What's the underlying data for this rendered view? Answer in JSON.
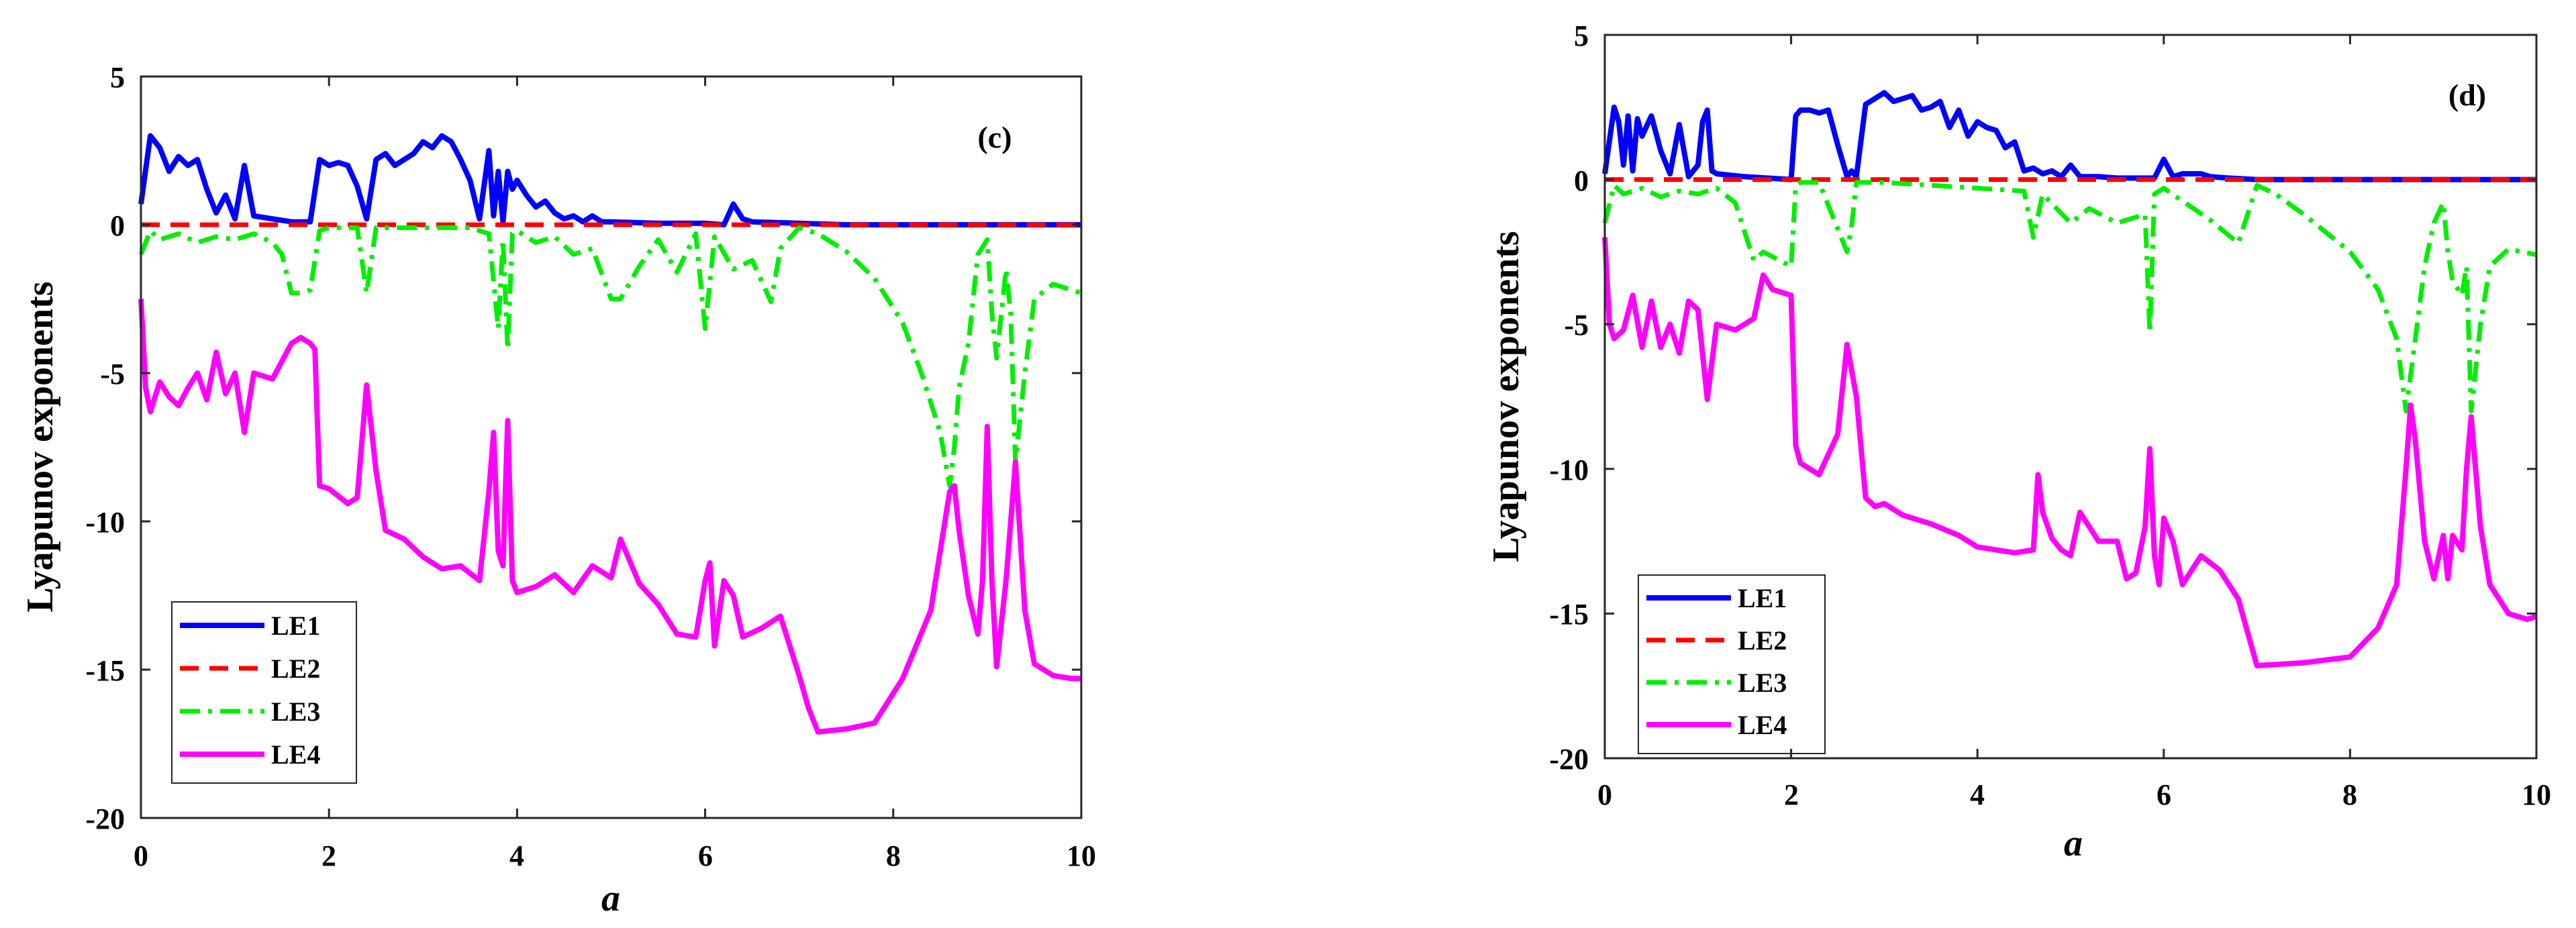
{
  "chart_data": [
    {
      "type": "line",
      "title": "(c)",
      "xlabel": "a",
      "ylabel": "Lyapunov exponents",
      "xlim": [
        0,
        10
      ],
      "ylim": [
        -20,
        5
      ],
      "xticks": [
        "0",
        "2",
        "4",
        "6",
        "8",
        "10"
      ],
      "yticks": [
        "5",
        "0",
        "-5",
        "-10",
        "-15",
        "-20"
      ],
      "legend_position": "bottom-left",
      "series": [
        {
          "name": "LE1",
          "color": "#0000ff",
          "dash": "solid",
          "x": [
            0,
            0.1,
            0.2,
            0.3,
            0.4,
            0.5,
            0.6,
            0.7,
            0.8,
            0.9,
            1.0,
            1.1,
            1.2,
            1.4,
            1.6,
            1.7,
            1.8,
            1.9,
            2.0,
            2.1,
            2.2,
            2.3,
            2.4,
            2.5,
            2.6,
            2.7,
            2.8,
            2.9,
            3.0,
            3.1,
            3.2,
            3.3,
            3.4,
            3.5,
            3.6,
            3.7,
            3.75,
            3.8,
            3.85,
            3.9,
            3.95,
            4.0,
            4.1,
            4.2,
            4.3,
            4.4,
            4.5,
            4.6,
            4.7,
            4.8,
            4.9,
            5.0,
            5.5,
            6.0,
            6.2,
            6.3,
            6.4,
            6.5,
            7.0,
            7.5,
            8.0,
            9.0,
            10.0
          ],
          "y": [
            0.7,
            3.0,
            2.6,
            1.8,
            2.3,
            2.0,
            2.2,
            1.2,
            0.4,
            1.0,
            0.2,
            2.0,
            0.3,
            0.2,
            0.1,
            0.1,
            0.1,
            2.2,
            2.0,
            2.1,
            2.0,
            1.3,
            0.2,
            2.2,
            2.4,
            2.0,
            2.2,
            2.4,
            2.8,
            2.6,
            3.0,
            2.8,
            2.2,
            1.5,
            0.2,
            2.5,
            0.3,
            1.8,
            0.1,
            1.8,
            1.2,
            1.5,
            1.0,
            0.6,
            0.8,
            0.4,
            0.2,
            0.3,
            0.1,
            0.3,
            0.1,
            0.1,
            0.05,
            0.05,
            0.0,
            0.7,
            0.2,
            0.1,
            0.05,
            0.0,
            0.0,
            0.0,
            0.0
          ]
        },
        {
          "name": "LE2",
          "color": "#ff0000",
          "dash": "dashed",
          "x": [
            0,
            10
          ],
          "y": [
            0,
            0
          ]
        },
        {
          "name": "LE3",
          "color": "#00ee00",
          "dash": "dashdot",
          "x": [
            0,
            0.1,
            0.2,
            0.4,
            0.6,
            0.8,
            1.0,
            1.2,
            1.4,
            1.5,
            1.6,
            1.7,
            1.8,
            1.9,
            2.0,
            2.3,
            2.4,
            2.5,
            3.0,
            3.5,
            3.7,
            3.8,
            3.85,
            3.9,
            3.95,
            4.0,
            4.2,
            4.4,
            4.6,
            4.8,
            5.0,
            5.1,
            5.3,
            5.5,
            5.7,
            5.9,
            6.0,
            6.1,
            6.3,
            6.5,
            6.7,
            6.8,
            7.0,
            7.2,
            7.5,
            7.8,
            8.1,
            8.3,
            8.5,
            8.6,
            8.65,
            8.7,
            8.8,
            8.9,
            9.0,
            9.05,
            9.1,
            9.2,
            9.25,
            9.3,
            9.4,
            9.5,
            9.7,
            10.0
          ],
          "y": [
            -1.0,
            -0.2,
            -0.5,
            -0.3,
            -0.6,
            -0.4,
            -0.5,
            -0.3,
            -0.6,
            -1.0,
            -2.3,
            -2.3,
            -2.2,
            -0.2,
            -0.1,
            -0.1,
            -2.3,
            -0.1,
            -0.1,
            -0.1,
            -0.3,
            -3.5,
            -0.5,
            -4.2,
            -0.3,
            -0.2,
            -0.6,
            -0.4,
            -1.0,
            -0.8,
            -2.5,
            -2.5,
            -1.4,
            -0.5,
            -1.6,
            -0.3,
            -3.5,
            -0.4,
            -1.5,
            -1.2,
            -2.6,
            -0.8,
            -0.1,
            -0.3,
            -0.9,
            -1.8,
            -3.3,
            -5.0,
            -7.0,
            -8.8,
            -7.5,
            -5.5,
            -4.0,
            -1.0,
            -0.5,
            -3.0,
            -4.5,
            -1.5,
            -3.0,
            -8.0,
            -5.0,
            -2.5,
            -2.0,
            -2.3
          ]
        },
        {
          "name": "LE4",
          "color": "#ff00ff",
          "dash": "solid",
          "x": [
            0,
            0.05,
            0.1,
            0.2,
            0.3,
            0.4,
            0.5,
            0.6,
            0.7,
            0.8,
            0.9,
            1.0,
            1.1,
            1.2,
            1.4,
            1.6,
            1.7,
            1.8,
            1.85,
            1.9,
            2.0,
            2.2,
            2.3,
            2.4,
            2.5,
            2.6,
            2.8,
            3.0,
            3.2,
            3.4,
            3.6,
            3.7,
            3.75,
            3.8,
            3.85,
            3.9,
            3.95,
            4.0,
            4.2,
            4.4,
            4.6,
            4.8,
            5.0,
            5.1,
            5.3,
            5.5,
            5.7,
            5.9,
            6.0,
            6.05,
            6.1,
            6.2,
            6.3,
            6.4,
            6.6,
            6.8,
            7.0,
            7.1,
            7.2,
            7.5,
            7.8,
            8.1,
            8.4,
            8.6,
            8.65,
            8.7,
            8.8,
            8.9,
            8.95,
            9.0,
            9.05,
            9.1,
            9.2,
            9.25,
            9.3,
            9.4,
            9.5,
            9.7,
            9.9,
            10.0
          ],
          "y": [
            -2.5,
            -5.5,
            -6.3,
            -5.3,
            -5.8,
            -6.1,
            -5.5,
            -5.0,
            -5.9,
            -4.3,
            -5.7,
            -5.0,
            -7.0,
            -5.0,
            -5.2,
            -4.0,
            -3.8,
            -4.0,
            -4.2,
            -8.8,
            -8.9,
            -9.4,
            -9.2,
            -5.4,
            -8.3,
            -10.3,
            -10.6,
            -11.2,
            -11.6,
            -11.5,
            -12.0,
            -9.0,
            -7.0,
            -11.0,
            -11.5,
            -6.6,
            -12.0,
            -12.4,
            -12.2,
            -11.8,
            -12.4,
            -11.5,
            -11.9,
            -10.6,
            -12.1,
            -12.8,
            -13.8,
            -13.9,
            -12.0,
            -11.4,
            -14.2,
            -12.0,
            -12.5,
            -13.9,
            -13.6,
            -13.2,
            -15.2,
            -16.3,
            -17.1,
            -17.0,
            -16.8,
            -15.3,
            -13.0,
            -9.0,
            -8.8,
            -10.3,
            -12.5,
            -13.8,
            -12.0,
            -6.8,
            -12.0,
            -14.9,
            -12.0,
            -10.0,
            -8.0,
            -13.0,
            -14.8,
            -15.2,
            -15.3,
            -15.3
          ]
        }
      ]
    },
    {
      "type": "line",
      "title": "(d)",
      "xlabel": "a",
      "ylabel": "Lyapunov exponents",
      "xlim": [
        0,
        10
      ],
      "ylim": [
        -20,
        5
      ],
      "xticks": [
        "0",
        "2",
        "4",
        "6",
        "8",
        "10"
      ],
      "yticks": [
        "5",
        "0",
        "-5",
        "-10",
        "-15",
        "-20"
      ],
      "legend_position": "bottom-left",
      "series": [
        {
          "name": "LE1",
          "color": "#0000ff",
          "dash": "solid",
          "x": [
            0,
            0.1,
            0.15,
            0.2,
            0.25,
            0.3,
            0.35,
            0.4,
            0.5,
            0.6,
            0.7,
            0.8,
            0.9,
            1.0,
            1.05,
            1.1,
            1.15,
            1.2,
            1.5,
            2.0,
            2.05,
            2.1,
            2.2,
            2.3,
            2.4,
            2.5,
            2.6,
            2.65,
            2.7,
            2.8,
            2.9,
            3.0,
            3.1,
            3.2,
            3.3,
            3.4,
            3.5,
            3.6,
            3.7,
            3.8,
            3.9,
            4.0,
            4.1,
            4.2,
            4.3,
            4.4,
            4.5,
            4.6,
            4.7,
            4.8,
            4.9,
            5.0,
            5.1,
            5.3,
            5.5,
            5.9,
            6.0,
            6.1,
            6.2,
            6.4,
            6.5,
            6.7,
            7.0,
            8.0,
            9.0,
            10.0
          ],
          "y": [
            0.2,
            2.5,
            2.0,
            0.5,
            2.2,
            0.3,
            2.1,
            1.5,
            2.2,
            1.0,
            0.2,
            1.9,
            0.1,
            0.5,
            2.0,
            2.4,
            0.3,
            0.2,
            0.1,
            0.0,
            2.2,
            2.4,
            2.4,
            2.3,
            2.4,
            1.2,
            0.1,
            0.3,
            0.1,
            2.6,
            2.8,
            3.0,
            2.7,
            2.8,
            2.9,
            2.4,
            2.5,
            2.7,
            1.8,
            2.4,
            1.5,
            2.0,
            1.8,
            1.7,
            1.1,
            1.3,
            0.3,
            0.4,
            0.2,
            0.3,
            0.1,
            0.5,
            0.1,
            0.1,
            0.05,
            0.05,
            0.7,
            0.1,
            0.2,
            0.2,
            0.1,
            0.05,
            0.0,
            0.0,
            0.0,
            0.0
          ]
        },
        {
          "name": "LE2",
          "color": "#ff0000",
          "dash": "dashed",
          "x": [
            0,
            10
          ],
          "y": [
            0,
            0
          ]
        },
        {
          "name": "LE3",
          "color": "#00ee00",
          "dash": "dashdot",
          "x": [
            0,
            0.1,
            0.2,
            0.4,
            0.6,
            0.8,
            1.0,
            1.2,
            1.4,
            1.6,
            1.7,
            2.0,
            2.05,
            2.1,
            2.3,
            2.6,
            2.65,
            2.7,
            2.8,
            3.0,
            3.5,
            4.0,
            4.5,
            4.6,
            4.7,
            5.0,
            5.2,
            5.5,
            5.8,
            5.85,
            5.9,
            6.0,
            6.5,
            6.8,
            7.0,
            7.2,
            7.5,
            8.0,
            8.3,
            8.5,
            8.6,
            8.7,
            8.8,
            8.9,
            9.0,
            9.05,
            9.1,
            9.2,
            9.25,
            9.3,
            9.4,
            9.5,
            9.7,
            10.0
          ],
          "y": [
            -1.5,
            -0.2,
            -0.5,
            -0.3,
            -0.6,
            -0.4,
            -0.5,
            -0.3,
            -0.8,
            -2.8,
            -2.5,
            -3.0,
            -0.2,
            -0.1,
            -0.1,
            -2.5,
            -1.6,
            -0.1,
            -0.1,
            -0.1,
            -0.2,
            -0.3,
            -0.4,
            -2.0,
            -0.5,
            -1.5,
            -1.0,
            -1.5,
            -1.2,
            -5.3,
            -0.5,
            -0.3,
            -1.4,
            -2.2,
            -0.2,
            -0.5,
            -1.2,
            -2.5,
            -3.8,
            -5.5,
            -8.0,
            -5.5,
            -3.0,
            -1.5,
            -0.8,
            -2.5,
            -3.5,
            -4.0,
            -3.0,
            -8.0,
            -5.0,
            -3.0,
            -2.4,
            -2.6
          ]
        },
        {
          "name": "LE4",
          "color": "#ff00ff",
          "dash": "solid",
          "x": [
            0,
            0.05,
            0.1,
            0.2,
            0.3,
            0.4,
            0.5,
            0.6,
            0.7,
            0.8,
            0.9,
            1.0,
            1.1,
            1.2,
            1.4,
            1.6,
            1.7,
            1.8,
            2.0,
            2.05,
            2.1,
            2.3,
            2.5,
            2.6,
            2.7,
            2.8,
            2.9,
            3.0,
            3.2,
            3.5,
            3.8,
            4.0,
            4.4,
            4.6,
            4.65,
            4.7,
            4.8,
            4.9,
            5.0,
            5.1,
            5.3,
            5.5,
            5.6,
            5.7,
            5.8,
            5.85,
            5.9,
            5.95,
            6.0,
            6.1,
            6.2,
            6.4,
            6.6,
            6.8,
            7.0,
            7.5,
            8.0,
            8.3,
            8.5,
            8.6,
            8.65,
            8.7,
            8.8,
            8.9,
            9.0,
            9.05,
            9.1,
            9.2,
            9.25,
            9.3,
            9.4,
            9.5,
            9.7,
            9.9,
            10.0
          ],
          "y": [
            -2.0,
            -5.0,
            -5.5,
            -5.2,
            -4.0,
            -5.8,
            -4.2,
            -5.8,
            -5.0,
            -6.0,
            -4.2,
            -4.5,
            -7.6,
            -5.0,
            -5.2,
            -4.8,
            -3.3,
            -3.8,
            -4.0,
            -9.2,
            -9.8,
            -10.2,
            -8.8,
            -5.7,
            -7.5,
            -11.0,
            -11.3,
            -11.2,
            -11.6,
            -11.9,
            -12.3,
            -12.7,
            -12.9,
            -12.8,
            -10.2,
            -11.5,
            -12.4,
            -12.8,
            -13.0,
            -11.5,
            -12.5,
            -12.5,
            -13.8,
            -13.6,
            -12.0,
            -9.3,
            -13.0,
            -14.0,
            -11.7,
            -12.5,
            -14.0,
            -13.0,
            -13.5,
            -14.5,
            -16.8,
            -16.7,
            -16.5,
            -15.5,
            -14.0,
            -10.0,
            -7.8,
            -9.0,
            -12.5,
            -13.8,
            -12.3,
            -13.8,
            -12.3,
            -12.8,
            -10.0,
            -8.2,
            -12.0,
            -14.0,
            -15.0,
            -15.2,
            -15.1
          ]
        }
      ]
    }
  ]
}
